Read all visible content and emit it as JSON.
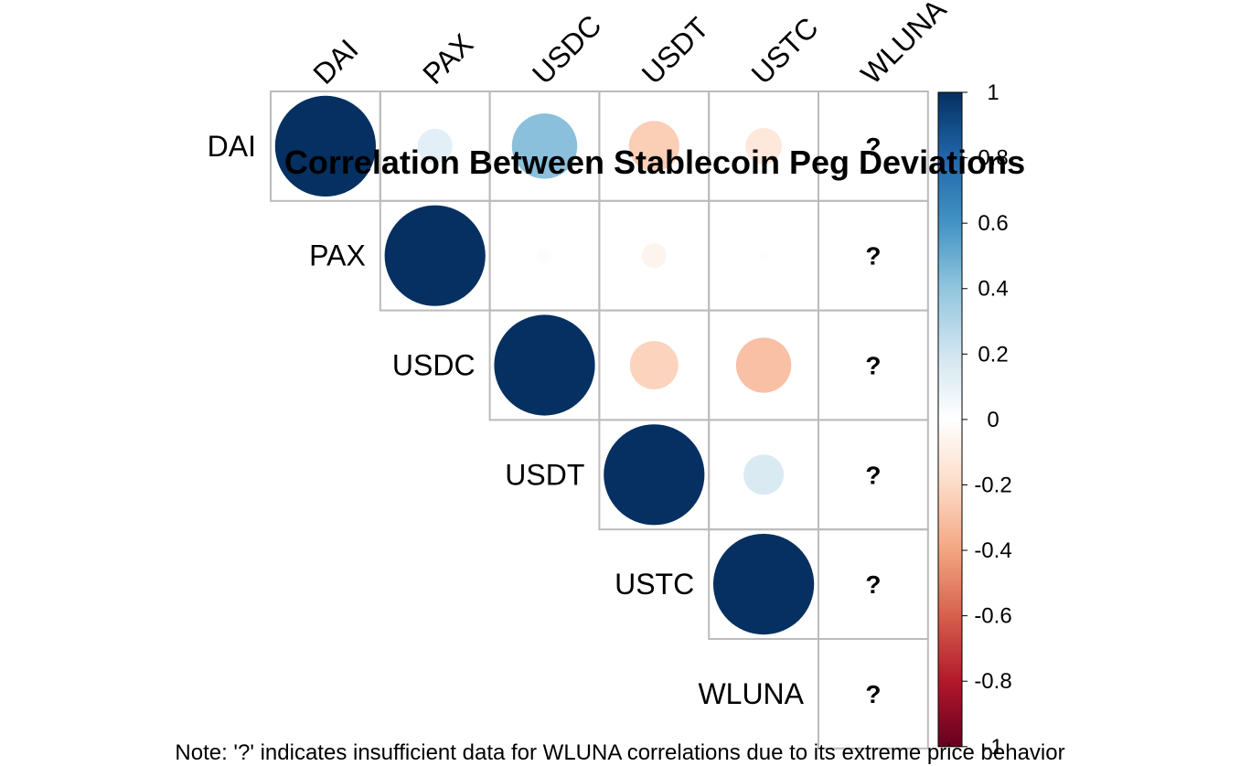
{
  "chart_data": {
    "type": "heatmap",
    "style": "corrplot-circle-upper",
    "title": "Correlation Between Stablecoin Peg Deviations",
    "note": "Note: '?' indicates insufficient data for WLUNA correlations due to its extreme price behavior",
    "variables": [
      "DAI",
      "PAX",
      "USDC",
      "USDT",
      "USTC",
      "WLUNA"
    ],
    "missing_symbol": "?",
    "matrix": [
      [
        1.0,
        0.12,
        0.42,
        -0.25,
        -0.13,
        null
      ],
      [
        null,
        1.0,
        0.02,
        -0.06,
        -0.01,
        null
      ],
      [
        null,
        null,
        1.0,
        -0.23,
        -0.3,
        null
      ],
      [
        null,
        null,
        null,
        1.0,
        0.16,
        null
      ],
      [
        null,
        null,
        null,
        null,
        1.0,
        null
      ],
      [
        null,
        null,
        null,
        null,
        null,
        null
      ]
    ],
    "colorbar": {
      "range": [
        -1,
        1
      ],
      "ticks": [
        "1",
        "0.8",
        "0.6",
        "0.4",
        "0.2",
        "0",
        "-0.2",
        "-0.4",
        "-0.6",
        "-0.8",
        "-1"
      ],
      "colors": [
        "#67001F",
        "#B2182B",
        "#D6604D",
        "#F4A582",
        "#FDDBC7",
        "#FFFFFF",
        "#D1E5F0",
        "#92C5DE",
        "#4393C3",
        "#2166AC",
        "#053061"
      ]
    },
    "grid_color": "#bbbbbb"
  }
}
